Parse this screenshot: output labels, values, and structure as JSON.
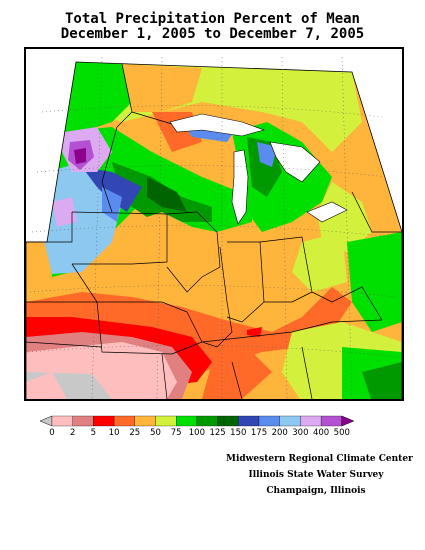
{
  "title": {
    "line1": "Total Precipitation Percent of Mean",
    "line2": "December 1, 2005 to December 7, 2005"
  },
  "legend": {
    "labels": [
      "0",
      "2",
      "5",
      "10",
      "25",
      "50",
      "75",
      "100",
      "125",
      "150",
      "175",
      "200",
      "300",
      "400",
      "500"
    ],
    "colors": [
      "#c8c8c8",
      "#ffbebe",
      "#e08080",
      "#ff0000",
      "#ff6a28",
      "#ffb43c",
      "#d2f03c",
      "#00e000",
      "#009a00",
      "#006400",
      "#3246b4",
      "#5a8cf0",
      "#8cc8f0",
      "#dcaaf0",
      "#b450d2",
      "#8c008c"
    ]
  },
  "credits": {
    "line1": "Midwestern Regional Climate Center",
    "line2": "Illinois State Water Survey",
    "line3": "Champaign, Illinois"
  },
  "map": {
    "region": "Midwest",
    "colors": {
      "gray": "#c8c8c8",
      "pink": "#ffbebe",
      "rose": "#e08080",
      "red": "#ff0000",
      "orange": "#ff6a28",
      "yellow_orange": "#ffb43c",
      "lime": "#d2f03c",
      "green": "#00e000",
      "mid_green": "#009a00",
      "dark_green": "#006400",
      "navy": "#3246b4",
      "blue": "#5a8cf0",
      "light_blue": "#8cc8f0",
      "lavender": "#dcaaf0",
      "purple": "#b450d2",
      "dark_purple": "#8c008c"
    }
  }
}
